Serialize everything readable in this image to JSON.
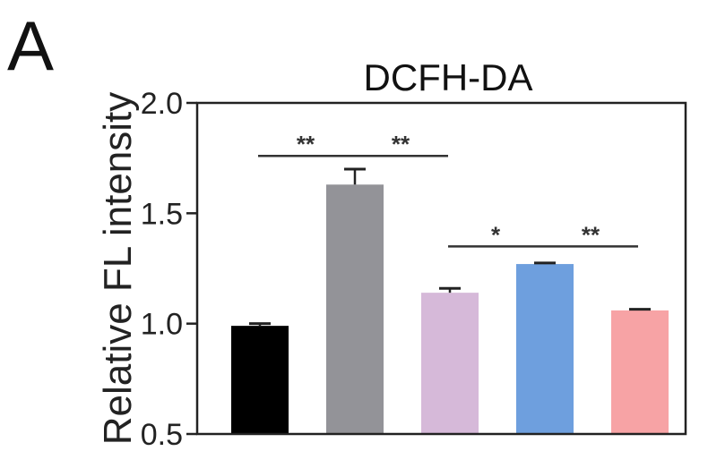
{
  "panel_label": "A",
  "chart_data": {
    "type": "bar",
    "title": "DCFH-DA",
    "ylabel": "Relative FL intensity",
    "xlabel": "",
    "ylim": [
      0.5,
      2.0
    ],
    "yticks": [
      0.5,
      1.0,
      1.5,
      2.0
    ],
    "ytick_labels": [
      "0.5",
      "1.0",
      "1.5",
      "2.0"
    ],
    "categories": [
      "",
      "",
      "",
      "",
      ""
    ],
    "values": [
      0.99,
      1.63,
      1.14,
      1.27,
      1.06
    ],
    "errors": [
      0.01,
      0.07,
      0.02,
      0.005,
      0.005
    ],
    "colors": [
      "#000000",
      "#939398",
      "#d6b9d9",
      "#6e9fde",
      "#f7a3a5"
    ],
    "significance": [
      {
        "from": 0,
        "to": 1,
        "label": "**",
        "y": 1.76
      },
      {
        "from": 1,
        "to": 2,
        "label": "**",
        "y": 1.76
      },
      {
        "from": 2,
        "to": 3,
        "label": "*",
        "y": 1.35
      },
      {
        "from": 3,
        "to": 4,
        "label": "**",
        "y": 1.35
      }
    ],
    "grid": false,
    "legend": "none"
  }
}
